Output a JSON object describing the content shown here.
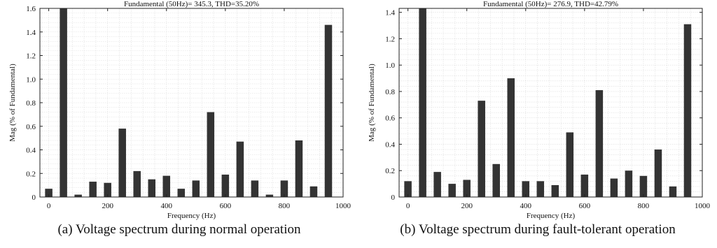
{
  "chart_data": [
    {
      "type": "bar",
      "title": "Fundamental (50Hz)= 345.3, THD=35.20%",
      "xlabel": "Frequency (Hz)",
      "ylabel": "Mag (% of Fundamental)",
      "x": [
        0,
        50,
        100,
        150,
        200,
        250,
        300,
        350,
        400,
        450,
        500,
        550,
        600,
        650,
        700,
        750,
        800,
        850,
        900,
        950
      ],
      "values": [
        0.07,
        1.6,
        0.02,
        0.13,
        0.12,
        0.58,
        0.22,
        0.15,
        0.18,
        0.07,
        0.14,
        0.72,
        0.19,
        0.47,
        0.14,
        0.02,
        0.14,
        0.48,
        0.09,
        1.46
      ],
      "xlim": [
        -30,
        1000
      ],
      "ylim": [
        0,
        1.6
      ],
      "xticks": [
        0,
        200,
        400,
        600,
        800,
        1000
      ],
      "yticks": [
        0,
        0.2,
        0.4,
        0.6,
        0.8,
        1.0,
        1.2,
        1.4,
        1.6
      ],
      "xtick_labels": [
        "0",
        "200",
        "400",
        "600",
        "800",
        "1000"
      ],
      "ytick_labels": [
        "0",
        "0.2",
        "0.4",
        "0.6",
        "0.8",
        "1.0",
        "1.2",
        "1.4",
        "1.6"
      ],
      "grid": true,
      "caption": "(a) Voltage spectrum during normal operation",
      "bar_color": "#333333"
    },
    {
      "type": "bar",
      "title": "Fundamental (50Hz)= 276.9, THD=42.79%",
      "xlabel": "Frequency (Hz)",
      "ylabel": "Mag (% of Fundamental)",
      "x": [
        0,
        50,
        100,
        150,
        200,
        250,
        300,
        350,
        400,
        450,
        500,
        550,
        600,
        650,
        700,
        750,
        800,
        850,
        900,
        950
      ],
      "values": [
        0.12,
        1.43,
        0.19,
        0.1,
        0.13,
        0.73,
        0.25,
        0.9,
        0.12,
        0.12,
        0.09,
        0.49,
        0.17,
        0.81,
        0.14,
        0.2,
        0.16,
        0.36,
        0.08,
        1.31
      ],
      "xlim": [
        -30,
        1000
      ],
      "ylim": [
        0,
        1.43
      ],
      "xticks": [
        0,
        200,
        400,
        600,
        800,
        1000
      ],
      "yticks": [
        0,
        0.2,
        0.4,
        0.6,
        0.8,
        1.0,
        1.2,
        1.4
      ],
      "xtick_labels": [
        "0",
        "200",
        "400",
        "600",
        "800",
        "1000"
      ],
      "ytick_labels": [
        "0",
        "0.2",
        "0.4",
        "0.6",
        "0.8",
        "1.0",
        "1.2",
        "1.4"
      ],
      "grid": true,
      "caption": "(b) Voltage spectrum during fault-tolerant operation",
      "bar_color": "#333333"
    }
  ]
}
